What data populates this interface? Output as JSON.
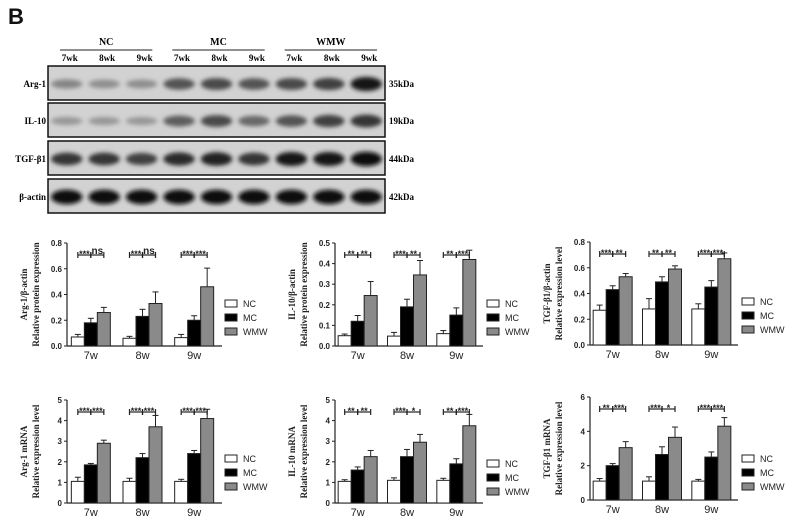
{
  "figure": {
    "panel_label": "B",
    "groups": [
      "NC",
      "MC",
      "WMW"
    ],
    "lane_labels": [
      "7wk",
      "8wk",
      "9wk",
      "7wk",
      "8wk",
      "9wk",
      "7wk",
      "8wk",
      "9wk"
    ],
    "blot_rows": [
      {
        "label": "Arg-1",
        "size": "35kDa",
        "intensities": [
          0.35,
          0.3,
          0.3,
          0.6,
          0.65,
          0.6,
          0.65,
          0.7,
          0.9
        ]
      },
      {
        "label": "IL-10",
        "size": "19kDa",
        "intensities": [
          0.25,
          0.25,
          0.25,
          0.55,
          0.65,
          0.5,
          0.6,
          0.7,
          0.75
        ]
      },
      {
        "label": "TGF-β1",
        "size": "44kDa",
        "intensities": [
          0.75,
          0.75,
          0.7,
          0.8,
          0.85,
          0.75,
          0.9,
          0.9,
          0.95
        ]
      },
      {
        "label": "β-actin",
        "size": "42kDa",
        "intensities": [
          0.95,
          0.95,
          0.95,
          0.95,
          0.95,
          0.95,
          0.95,
          0.95,
          0.95
        ]
      }
    ],
    "colors": {
      "NC": "#ffffff",
      "MC": "#000000",
      "WMW": "#8a8a8a"
    }
  },
  "chart_data": [
    {
      "type": "bar",
      "title": "",
      "ylabel": "Arg-1/β-actin Relative protein expression",
      "ylabel_lines": [
        "Arg-1/β-actin",
        "Relative protein expression"
      ],
      "categories": [
        "7w",
        "8w",
        "9w"
      ],
      "series": [
        {
          "name": "NC",
          "values": [
            0.07,
            0.06,
            0.065
          ],
          "errors": [
            0.02,
            0.015,
            0.025
          ]
        },
        {
          "name": "MC",
          "values": [
            0.18,
            0.23,
            0.2
          ],
          "errors": [
            0.035,
            0.055,
            0.035
          ]
        },
        {
          "name": "WMW",
          "values": [
            0.26,
            0.33,
            0.46
          ],
          "errors": [
            0.04,
            0.09,
            0.145
          ]
        }
      ],
      "significance": [
        [
          "***",
          "ns"
        ],
        [
          "***",
          "ns"
        ],
        [
          "***",
          "***"
        ]
      ],
      "ylim": [
        0,
        0.8
      ],
      "yticks": [
        "0.0",
        "0.2",
        "0.4",
        "0.6",
        "0.8"
      ],
      "ytick_values": [
        0,
        0.2,
        0.4,
        0.6,
        0.8
      ],
      "legend": [
        "NC",
        "MC",
        "WMW"
      ],
      "legend_position": "right",
      "grid": false
    },
    {
      "type": "bar",
      "title": "",
      "ylabel": "IL-10/β-actin Relative protein expression",
      "ylabel_lines": [
        "IL-10/β-actin",
        "Relative protein expression"
      ],
      "categories": [
        "7w",
        "8w",
        "9w"
      ],
      "series": [
        {
          "name": "NC",
          "values": [
            0.05,
            0.048,
            0.06
          ],
          "errors": [
            0.008,
            0.018,
            0.015
          ]
        },
        {
          "name": "MC",
          "values": [
            0.12,
            0.19,
            0.15
          ],
          "errors": [
            0.028,
            0.037,
            0.035
          ]
        },
        {
          "name": "WMW",
          "values": [
            0.245,
            0.345,
            0.42
          ],
          "errors": [
            0.068,
            0.07,
            0.045
          ]
        }
      ],
      "significance": [
        [
          "**",
          "**"
        ],
        [
          "***",
          "**"
        ],
        [
          "**",
          "***"
        ]
      ],
      "ylim": [
        0,
        0.5
      ],
      "yticks": [
        "0.0",
        "0.1",
        "0.2",
        "0.3",
        "0.4",
        "0.5"
      ],
      "ytick_values": [
        0,
        0.1,
        0.2,
        0.3,
        0.4,
        0.5
      ],
      "legend": [
        "NC",
        "MC",
        "WMW"
      ],
      "legend_position": "right",
      "grid": false
    },
    {
      "type": "bar",
      "title": "",
      "ylabel": "TGF-β1/β-actin Relative expression level",
      "ylabel_lines": [
        "TGF-β1/β-actin",
        "Relative expression level"
      ],
      "categories": [
        "7w",
        "8w",
        "9w"
      ],
      "series": [
        {
          "name": "NC",
          "values": [
            0.27,
            0.28,
            0.28
          ],
          "errors": [
            0.04,
            0.08,
            0.04
          ]
        },
        {
          "name": "MC",
          "values": [
            0.43,
            0.49,
            0.45
          ],
          "errors": [
            0.03,
            0.04,
            0.05
          ]
        },
        {
          "name": "WMW",
          "values": [
            0.53,
            0.59,
            0.67
          ],
          "errors": [
            0.025,
            0.025,
            0.045
          ]
        }
      ],
      "significance": [
        [
          "***",
          "**"
        ],
        [
          "**",
          "**"
        ],
        [
          "***",
          "***"
        ]
      ],
      "ylim": [
        0,
        0.8
      ],
      "yticks": [
        "0.0",
        "0.2",
        "0.4",
        "0.6",
        "0.8"
      ],
      "ytick_values": [
        0,
        0.2,
        0.4,
        0.6,
        0.8
      ],
      "legend": [
        "NC",
        "MC",
        "WMW"
      ],
      "legend_position": "right",
      "grid": false
    },
    {
      "type": "bar",
      "title": "",
      "ylabel": "Arg-1 mRNA Relative expression level",
      "ylabel_lines": [
        "Arg-1 mRNA",
        "Relative expression level"
      ],
      "categories": [
        "7w",
        "8w",
        "9w"
      ],
      "series": [
        {
          "name": "NC",
          "values": [
            1.05,
            1.05,
            1.05
          ],
          "errors": [
            0.2,
            0.15,
            0.1
          ]
        },
        {
          "name": "MC",
          "values": [
            1.85,
            2.2,
            2.4
          ],
          "errors": [
            0.07,
            0.2,
            0.15
          ]
        },
        {
          "name": "WMW",
          "values": [
            2.9,
            3.7,
            4.1
          ],
          "errors": [
            0.15,
            0.55,
            0.45
          ]
        }
      ],
      "significance": [
        [
          "***",
          "***"
        ],
        [
          "***",
          "***"
        ],
        [
          "***",
          "***"
        ]
      ],
      "ylim": [
        0,
        5
      ],
      "yticks": [
        "0",
        "1",
        "2",
        "3",
        "4",
        "5"
      ],
      "ytick_values": [
        0,
        1,
        2,
        3,
        4,
        5
      ],
      "legend": [
        "NC",
        "MC",
        "WMW"
      ],
      "legend_position": "right",
      "grid": false
    },
    {
      "type": "bar",
      "title": "",
      "ylabel": "IL-10 mRNA Relative expression level",
      "ylabel_lines": [
        "IL-10 mRNA",
        "Relative expression level"
      ],
      "categories": [
        "7w",
        "8w",
        "9w"
      ],
      "series": [
        {
          "name": "NC",
          "values": [
            1.05,
            1.1,
            1.1
          ],
          "errors": [
            0.08,
            0.12,
            0.1
          ]
        },
        {
          "name": "MC",
          "values": [
            1.6,
            2.25,
            1.9
          ],
          "errors": [
            0.15,
            0.35,
            0.25
          ]
        },
        {
          "name": "WMW",
          "values": [
            2.25,
            2.95,
            3.75
          ],
          "errors": [
            0.3,
            0.38,
            0.55
          ]
        }
      ],
      "significance": [
        [
          "**",
          "**"
        ],
        [
          "***",
          "*"
        ],
        [
          "**",
          "***"
        ]
      ],
      "ylim": [
        0,
        5
      ],
      "yticks": [
        "0",
        "1",
        "2",
        "3",
        "4",
        "5"
      ],
      "ytick_values": [
        0,
        1,
        2,
        3,
        4,
        5
      ],
      "legend": [
        "NC",
        "MC",
        "WMW"
      ],
      "legend_position": "right",
      "grid": false
    },
    {
      "type": "bar",
      "title": "",
      "ylabel": "TGF-β1 mRNA Relative expression level",
      "ylabel_lines": [
        "TGF-β1 mRNA",
        "Relative expression level"
      ],
      "categories": [
        "7w",
        "8w",
        "9w"
      ],
      "series": [
        {
          "name": "NC",
          "values": [
            1.1,
            1.1,
            1.1
          ],
          "errors": [
            0.15,
            0.25,
            0.1
          ]
        },
        {
          "name": "MC",
          "values": [
            2.0,
            2.65,
            2.5
          ],
          "errors": [
            0.12,
            0.45,
            0.3
          ]
        },
        {
          "name": "WMW",
          "values": [
            3.05,
            3.65,
            4.3
          ],
          "errors": [
            0.35,
            0.6,
            0.5
          ]
        }
      ],
      "significance": [
        [
          "**",
          "***"
        ],
        [
          "***",
          "*"
        ],
        [
          "***",
          "***"
        ]
      ],
      "ylim": [
        0,
        6
      ],
      "yticks": [
        "0",
        "2",
        "4",
        "6"
      ],
      "ytick_values": [
        0,
        2,
        4,
        6
      ],
      "legend": [
        "NC",
        "MC",
        "WMW"
      ],
      "legend_position": "right",
      "grid": false
    }
  ]
}
